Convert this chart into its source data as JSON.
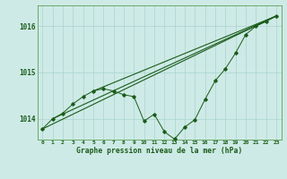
{
  "title": "Graphe pression niveau de la mer (hPa)",
  "bg_color": "#ceeae6",
  "grid_color": "#aad4cf",
  "line_color": "#1a5c1a",
  "xlim": [
    -0.5,
    23.5
  ],
  "ylim": [
    1013.55,
    1016.45
  ],
  "yticks": [
    1014,
    1015,
    1016
  ],
  "xticks": [
    0,
    1,
    2,
    3,
    4,
    5,
    6,
    7,
    8,
    9,
    10,
    11,
    12,
    13,
    14,
    15,
    16,
    17,
    18,
    19,
    20,
    21,
    22,
    23
  ],
  "y_main": [
    1013.78,
    1014.0,
    1014.12,
    1014.32,
    1014.48,
    1014.6,
    1014.65,
    1014.6,
    1014.52,
    1014.48,
    1013.95,
    1014.1,
    1013.72,
    1013.56,
    1013.82,
    1013.98,
    1014.42,
    1014.82,
    1015.08,
    1015.42,
    1015.82,
    1016.0,
    1016.1,
    1016.22
  ],
  "trend1_x": [
    0,
    23
  ],
  "trend1_y": [
    1013.78,
    1016.22
  ],
  "trend2_x": [
    1,
    23
  ],
  "trend2_y": [
    1014.0,
    1016.22
  ],
  "trend3_x": [
    5,
    23
  ],
  "trend3_y": [
    1014.6,
    1016.22
  ]
}
